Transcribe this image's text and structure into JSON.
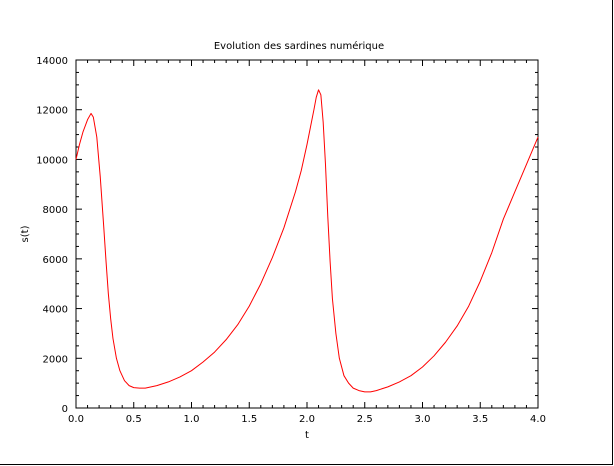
{
  "chart_data": {
    "type": "line",
    "title": "Evolution des sardines numérique",
    "xlabel": "t",
    "ylabel": "s(t)",
    "xlim": [
      0,
      4
    ],
    "ylim": [
      0,
      14000
    ],
    "grid": false,
    "x_ticks": [
      "0.0",
      "0.5",
      "1.0",
      "1.5",
      "2.0",
      "2.5",
      "3.0",
      "3.5",
      "4.0"
    ],
    "y_ticks": [
      "0",
      "2000",
      "4000",
      "6000",
      "8000",
      "10000",
      "12000",
      "14000"
    ],
    "series": [
      {
        "color": "#ff0000",
        "x": [
          0.0,
          0.03,
          0.06,
          0.1,
          0.13,
          0.15,
          0.18,
          0.21,
          0.24,
          0.26,
          0.28,
          0.3,
          0.32,
          0.35,
          0.38,
          0.42,
          0.46,
          0.5,
          0.55,
          0.6,
          0.7,
          0.8,
          0.9,
          1.0,
          1.1,
          1.2,
          1.3,
          1.4,
          1.5,
          1.6,
          1.7,
          1.8,
          1.9,
          1.95,
          2.0,
          2.03,
          2.06,
          2.08,
          2.1,
          2.12,
          2.14,
          2.16,
          2.18,
          2.2,
          2.22,
          2.25,
          2.28,
          2.32,
          2.36,
          2.4,
          2.45,
          2.5,
          2.55,
          2.6,
          2.7,
          2.8,
          2.9,
          3.0,
          3.1,
          3.2,
          3.3,
          3.4,
          3.5,
          3.6,
          3.7,
          3.8,
          3.9,
          4.0
        ],
        "y": [
          10000,
          10600,
          11100,
          11600,
          11850,
          11700,
          10900,
          9300,
          7300,
          5900,
          4600,
          3600,
          2800,
          2000,
          1500,
          1100,
          900,
          820,
          800,
          800,
          900,
          1050,
          1250,
          1500,
          1850,
          2250,
          2750,
          3350,
          4100,
          5000,
          6050,
          7250,
          8700,
          9550,
          10600,
          11300,
          12000,
          12500,
          12800,
          12600,
          11500,
          9800,
          7700,
          5900,
          4400,
          3000,
          2000,
          1300,
          1000,
          800,
          700,
          650,
          650,
          700,
          850,
          1050,
          1300,
          1650,
          2100,
          2650,
          3300,
          4100,
          5100,
          6250,
          7600,
          8700,
          9800,
          10900
        ]
      }
    ]
  }
}
